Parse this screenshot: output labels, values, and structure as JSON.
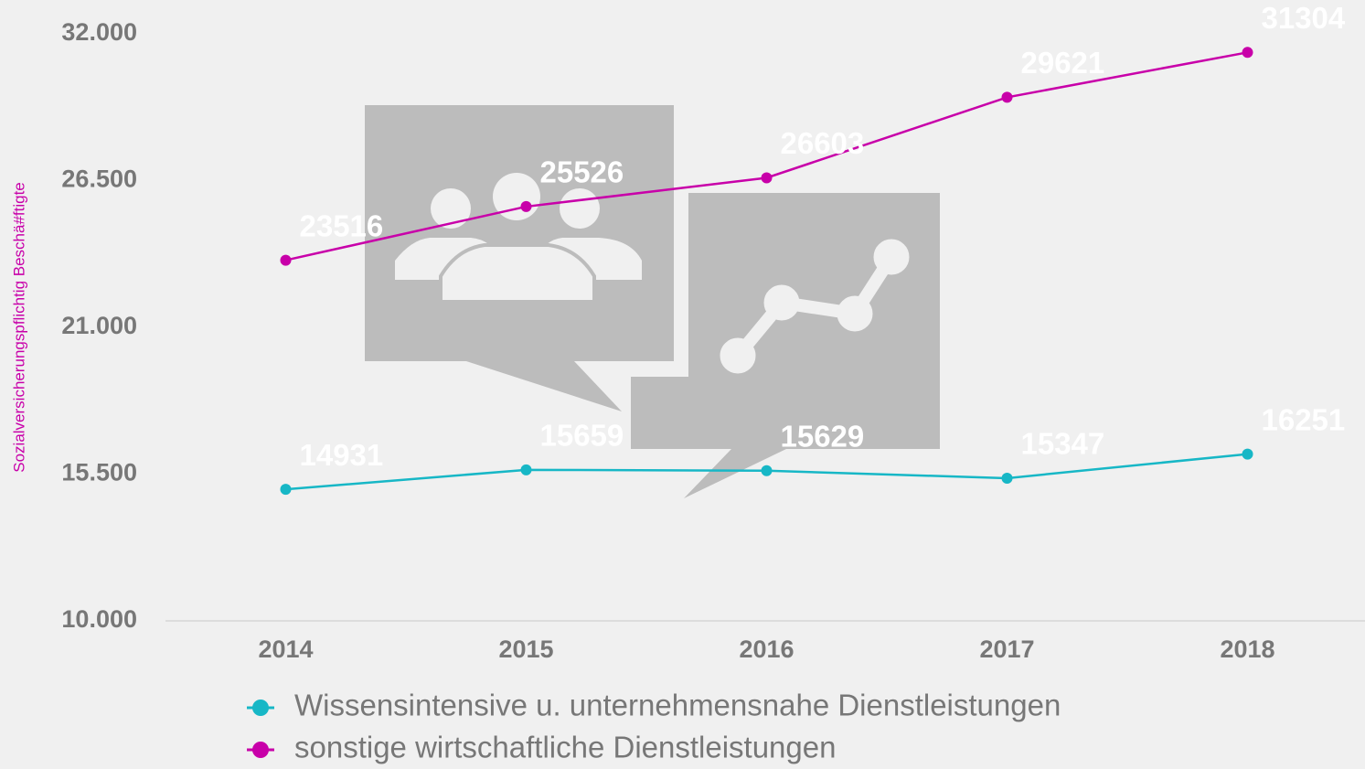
{
  "chart_data": {
    "type": "line",
    "y_label": "Sozialversicherungspflichtig Beschä#ftigte",
    "categories": [
      "2014",
      "2015",
      "2016",
      "2017",
      "2018"
    ],
    "series": [
      {
        "name": "Wissensintensive u. unternehmensnahe Dienstleistungen",
        "color": "#17b7c6",
        "values": [
          14931,
          15659,
          15629,
          15347,
          16251
        ]
      },
      {
        "name": "sonstige wirtschaftliche Dienstleistungen",
        "color": "#c800a9",
        "values": [
          23516,
          25526,
          26603,
          29621,
          31304
        ]
      }
    ],
    "ylim": [
      10000,
      32000
    ],
    "yticks": [
      {
        "value": 10000,
        "label": "10.000"
      },
      {
        "value": 15500,
        "label": "15.500"
      },
      {
        "value": 21000,
        "label": "21.000"
      },
      {
        "value": 26500,
        "label": "26.500"
      },
      {
        "value": 32000,
        "label": "32.000"
      }
    ],
    "legend": "bottom"
  }
}
